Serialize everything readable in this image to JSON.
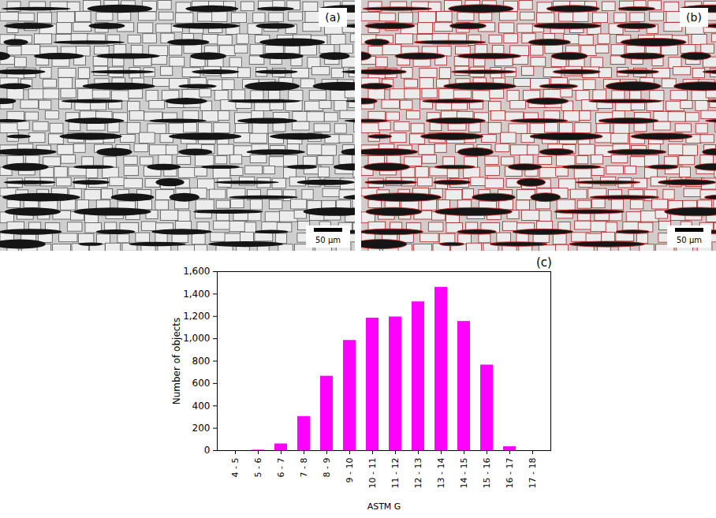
{
  "images": [
    {
      "label": "(a)",
      "scale_bar": "50 μm"
    },
    {
      "label": "(b)",
      "scale_bar": "50 μm"
    }
  ],
  "chart_data": {
    "type": "bar",
    "annotations": [
      "(c)"
    ],
    "x_label": "ASTM G",
    "y_label": "Number of objects",
    "categories": [
      "4 - 5",
      "5 - 6",
      "6 - 7",
      "7 - 8",
      "8 - 9",
      "9 - 10",
      "10 - 11",
      "11 - 12",
      "12 - 13",
      "13 - 14",
      "14 - 15",
      "15 - 16",
      "16 - 17",
      "17 - 18"
    ],
    "values": [
      0,
      5,
      60,
      305,
      665,
      985,
      1185,
      1195,
      1330,
      1460,
      1155,
      765,
      35,
      0
    ],
    "color": "#ff00ff",
    "ylim": [
      0,
      1600
    ],
    "yticks": [
      0,
      200,
      400,
      600,
      800,
      1000,
      1200,
      1400,
      1600
    ],
    "grid": false
  }
}
